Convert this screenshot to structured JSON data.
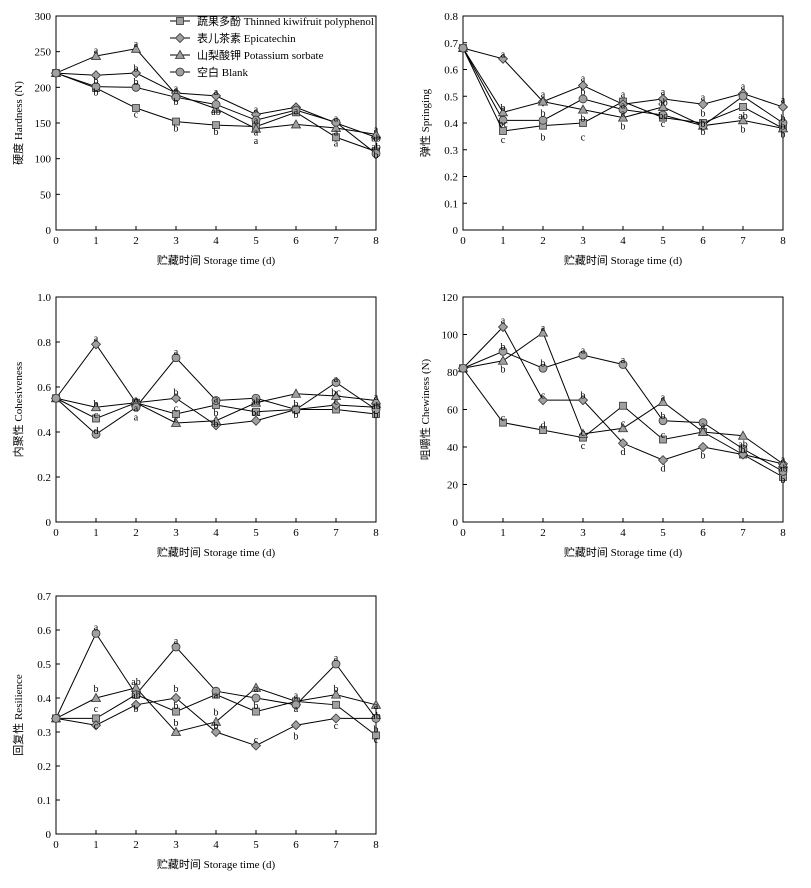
{
  "legend": [
    {
      "label": "蔬果多酚 Thinned kiwifruit polyphenol",
      "marker": "square"
    },
    {
      "label": "表儿茶素 Epicatechin",
      "marker": "diamond"
    },
    {
      "label": "山梨酸钾 Potassium sorbate",
      "marker": "triangle"
    },
    {
      "label": "空白 Blank",
      "marker": "circle"
    }
  ],
  "colors": {
    "marker_fill": "#a0a0a0",
    "marker_stroke": "#333333",
    "line": "#000000"
  },
  "chart_data": [
    {
      "type": "line",
      "ylabel": "硬度 Hardness (N)",
      "xlabel": "贮藏时间 Storage time (d)",
      "x": [
        0,
        1,
        2,
        3,
        4,
        5,
        6,
        7,
        8
      ],
      "xticks": [
        "0",
        "1",
        "2",
        "3",
        "4",
        "5",
        "6",
        "7",
        "8"
      ],
      "ylim": [
        0,
        300
      ],
      "yticks": [
        "0",
        "50",
        "100",
        "150",
        "200",
        "250",
        "300"
      ],
      "series": [
        {
          "name": "蔬果多酚 Thinned kiwifruit polyphenol",
          "values": [
            220,
            199,
            171,
            152,
            147,
            145,
            165,
            130,
            110
          ]
        },
        {
          "name": "表儿茶素 Epicatechin",
          "values": [
            220,
            217,
            220,
            192,
            188,
            162,
            172,
            150,
            130
          ]
        },
        {
          "name": "山梨酸钾 Potassium sorbate",
          "values": [
            220,
            244,
            254,
            190,
            170,
            142,
            148,
            143,
            134
          ]
        },
        {
          "name": "空白 Blank",
          "values": [
            220,
            201,
            200,
            186,
            176,
            154,
            168,
            151,
            107
          ]
        }
      ],
      "annotations": [
        {
          "x": 1,
          "y": 253,
          "text": "a"
        },
        {
          "x": 1,
          "y": 210,
          "text": "b"
        },
        {
          "x": 1,
          "y": 194,
          "text": "b"
        },
        {
          "x": 2,
          "y": 262,
          "text": "a"
        },
        {
          "x": 2,
          "y": 228,
          "text": "b"
        },
        {
          "x": 2,
          "y": 209,
          "text": "b"
        },
        {
          "x": 2,
          "y": 163,
          "text": "c"
        },
        {
          "x": 3,
          "y": 200,
          "text": "a"
        },
        {
          "x": 3,
          "y": 181,
          "text": "b"
        },
        {
          "x": 3,
          "y": 144,
          "text": "b"
        },
        {
          "x": 4,
          "y": 195,
          "text": "a"
        },
        {
          "x": 4,
          "y": 167,
          "text": "ab"
        },
        {
          "x": 4,
          "y": 139,
          "text": "b"
        },
        {
          "x": 5,
          "y": 170,
          "text": "a"
        },
        {
          "x": 5,
          "y": 155,
          "text": "a"
        },
        {
          "x": 5,
          "y": 138,
          "text": "a"
        },
        {
          "x": 5,
          "y": 126,
          "text": "a"
        },
        {
          "x": 6,
          "y": 168,
          "text": "a"
        },
        {
          "x": 7,
          "y": 158,
          "text": "a"
        },
        {
          "x": 7,
          "y": 138,
          "text": "a"
        },
        {
          "x": 7,
          "y": 123,
          "text": "a"
        },
        {
          "x": 8,
          "y": 142,
          "text": "a"
        },
        {
          "x": 8,
          "y": 130,
          "text": "ab"
        },
        {
          "x": 8,
          "y": 118,
          "text": "ab"
        },
        {
          "x": 8,
          "y": 106,
          "text": "b"
        }
      ]
    },
    {
      "type": "line",
      "ylabel": "弹性 Springing",
      "xlabel": "贮藏时间 Storage time (d)",
      "x": [
        0,
        1,
        2,
        3,
        4,
        5,
        6,
        7,
        8
      ],
      "xticks": [
        "0",
        "1",
        "2",
        "3",
        "4",
        "5",
        "6",
        "7",
        "8"
      ],
      "ylim": [
        0,
        0.8
      ],
      "yticks": [
        "0",
        "0.1",
        "0.2",
        "0.3",
        "0.4",
        "0.5",
        "0.6",
        "0.7",
        "0.8"
      ],
      "series": [
        {
          "name": "蔬果多酚 Thinned kiwifruit polyphenol",
          "values": [
            0.68,
            0.37,
            0.39,
            0.4,
            0.48,
            0.42,
            0.4,
            0.46,
            0.38
          ]
        },
        {
          "name": "表儿茶素 Epicatechin",
          "values": [
            0.68,
            0.64,
            0.48,
            0.54,
            0.47,
            0.49,
            0.47,
            0.51,
            0.46
          ]
        },
        {
          "name": "山梨酸钾 Potassium sorbate",
          "values": [
            0.68,
            0.44,
            0.48,
            0.45,
            0.42,
            0.46,
            0.39,
            0.41,
            0.38
          ]
        },
        {
          "name": "空白 Blank",
          "values": [
            0.68,
            0.41,
            0.41,
            0.49,
            0.45,
            0.43,
            0.39,
            0.5,
            0.4
          ]
        }
      ],
      "annotations": [
        {
          "x": 1,
          "y": 0.66,
          "text": "a"
        },
        {
          "x": 1,
          "y": 0.46,
          "text": "b"
        },
        {
          "x": 1,
          "y": 0.4,
          "text": "bc"
        },
        {
          "x": 1,
          "y": 0.34,
          "text": "c"
        },
        {
          "x": 2,
          "y": 0.51,
          "text": "a"
        },
        {
          "x": 2,
          "y": 0.44,
          "text": "b"
        },
        {
          "x": 2,
          "y": 0.35,
          "text": "b"
        },
        {
          "x": 3,
          "y": 0.57,
          "text": "a"
        },
        {
          "x": 3,
          "y": 0.52,
          "text": "b"
        },
        {
          "x": 3,
          "y": 0.42,
          "text": "b"
        },
        {
          "x": 3,
          "y": 0.35,
          "text": "c"
        },
        {
          "x": 4,
          "y": 0.51,
          "text": "a"
        },
        {
          "x": 4,
          "y": 0.47,
          "text": "a"
        },
        {
          "x": 4,
          "y": 0.44,
          "text": "a"
        },
        {
          "x": 4,
          "y": 0.39,
          "text": "b"
        },
        {
          "x": 5,
          "y": 0.52,
          "text": "a"
        },
        {
          "x": 5,
          "y": 0.48,
          "text": "ab"
        },
        {
          "x": 5,
          "y": 0.43,
          "text": "bc"
        },
        {
          "x": 5,
          "y": 0.4,
          "text": "c"
        },
        {
          "x": 6,
          "y": 0.5,
          "text": "a"
        },
        {
          "x": 6,
          "y": 0.44,
          "text": "b"
        },
        {
          "x": 6,
          "y": 0.4,
          "text": "b"
        },
        {
          "x": 6,
          "y": 0.37,
          "text": "b"
        },
        {
          "x": 7,
          "y": 0.54,
          "text": "a"
        },
        {
          "x": 7,
          "y": 0.43,
          "text": "ab"
        },
        {
          "x": 7,
          "y": 0.38,
          "text": "b"
        },
        {
          "x": 8,
          "y": 0.49,
          "text": "a"
        },
        {
          "x": 8,
          "y": 0.42,
          "text": "b"
        },
        {
          "x": 8,
          "y": 0.39,
          "text": "b"
        },
        {
          "x": 8,
          "y": 0.36,
          "text": "b"
        }
      ]
    },
    {
      "type": "line",
      "ylabel": "内聚性 Cohesiveness",
      "xlabel": "贮藏时间 Storage time (d)",
      "x": [
        0,
        1,
        2,
        3,
        4,
        5,
        6,
        7,
        8
      ],
      "xticks": [
        "0",
        "1",
        "2",
        "3",
        "4",
        "5",
        "6",
        "7",
        "8"
      ],
      "ylim": [
        0,
        1.0
      ],
      "yticks": [
        "0",
        "0.2",
        "0.4",
        "0.6",
        "0.8",
        "1.0"
      ],
      "series": [
        {
          "name": "蔬果多酚 Thinned kiwifruit polyphenol",
          "values": [
            0.55,
            0.46,
            0.53,
            0.48,
            0.52,
            0.49,
            0.5,
            0.5,
            0.48
          ]
        },
        {
          "name": "表儿茶素 Epicatechin",
          "values": [
            0.55,
            0.79,
            0.53,
            0.55,
            0.43,
            0.45,
            0.5,
            0.52,
            0.51
          ]
        },
        {
          "name": "山梨酸钾 Potassium sorbate",
          "values": [
            0.55,
            0.51,
            0.53,
            0.44,
            0.45,
            0.53,
            0.57,
            0.56,
            0.54
          ]
        },
        {
          "name": "空白 Blank",
          "values": [
            0.55,
            0.39,
            0.51,
            0.73,
            0.54,
            0.55,
            0.5,
            0.62,
            0.5
          ]
        }
      ],
      "annotations": [
        {
          "x": 1,
          "y": 0.82,
          "text": "a"
        },
        {
          "x": 1,
          "y": 0.53,
          "text": "b"
        },
        {
          "x": 1,
          "y": 0.48,
          "text": "c"
        },
        {
          "x": 1,
          "y": 0.41,
          "text": "d"
        },
        {
          "x": 2,
          "y": 0.55,
          "text": "a"
        },
        {
          "x": 2,
          "y": 0.51,
          "text": "a"
        },
        {
          "x": 2,
          "y": 0.47,
          "text": "a"
        },
        {
          "x": 3,
          "y": 0.76,
          "text": "a"
        },
        {
          "x": 3,
          "y": 0.58,
          "text": "b"
        },
        {
          "x": 3,
          "y": 0.51,
          "text": "c"
        },
        {
          "x": 3,
          "y": 0.46,
          "text": "c"
        },
        {
          "x": 4,
          "y": 0.55,
          "text": "a"
        },
        {
          "x": 4,
          "y": 0.49,
          "text": "b"
        },
        {
          "x": 4,
          "y": 0.44,
          "text": "b"
        },
        {
          "x": 5,
          "y": 0.54,
          "text": "ab"
        },
        {
          "x": 5,
          "y": 0.49,
          "text": "bc"
        },
        {
          "x": 6,
          "y": 0.53,
          "text": "b"
        },
        {
          "x": 6,
          "y": 0.48,
          "text": "b"
        },
        {
          "x": 7,
          "y": 0.64,
          "text": "a"
        },
        {
          "x": 7,
          "y": 0.58,
          "text": "bc"
        },
        {
          "x": 7,
          "y": 0.54,
          "text": "c"
        },
        {
          "x": 8,
          "y": 0.56,
          "text": "a"
        },
        {
          "x": 8,
          "y": 0.52,
          "text": "ab"
        },
        {
          "x": 8,
          "y": 0.48,
          "text": "b"
        }
      ]
    },
    {
      "type": "line",
      "ylabel": "咀嚼性 Chewiness (N)",
      "xlabel": "贮藏时间 Storage time (d)",
      "x": [
        0,
        1,
        2,
        3,
        4,
        5,
        6,
        7,
        8
      ],
      "xticks": [
        "0",
        "1",
        "2",
        "3",
        "4",
        "5",
        "6",
        "7",
        "8"
      ],
      "ylim": [
        0,
        120
      ],
      "yticks": [
        "0",
        "20",
        "40",
        "60",
        "80",
        "100",
        "120"
      ],
      "series": [
        {
          "name": "蔬果多酚 Thinned kiwifruit polyphenol",
          "values": [
            82,
            53,
            49,
            45,
            62,
            44,
            48,
            36,
            24
          ]
        },
        {
          "name": "表儿茶素 Epicatechin",
          "values": [
            82,
            104,
            65,
            65,
            42,
            33,
            40,
            36,
            31
          ]
        },
        {
          "name": "山梨酸钾 Potassium sorbate",
          "values": [
            82,
            86,
            101,
            47,
            50,
            64,
            48,
            46,
            31
          ]
        },
        {
          "name": "空白 Blank",
          "values": [
            82,
            91,
            82,
            89,
            84,
            54,
            53,
            39,
            27
          ]
        }
      ],
      "annotations": [
        {
          "x": 1,
          "y": 108,
          "text": "a"
        },
        {
          "x": 1,
          "y": 94,
          "text": "b"
        },
        {
          "x": 1,
          "y": 82,
          "text": "b"
        },
        {
          "x": 1,
          "y": 56,
          "text": "c"
        },
        {
          "x": 2,
          "y": 104,
          "text": "a"
        },
        {
          "x": 2,
          "y": 85,
          "text": "b"
        },
        {
          "x": 2,
          "y": 68,
          "text": "c"
        },
        {
          "x": 2,
          "y": 52,
          "text": "d"
        },
        {
          "x": 3,
          "y": 92,
          "text": "a"
        },
        {
          "x": 3,
          "y": 68,
          "text": "b"
        },
        {
          "x": 3,
          "y": 48,
          "text": "c"
        },
        {
          "x": 3,
          "y": 41,
          "text": "c"
        },
        {
          "x": 4,
          "y": 87,
          "text": "a"
        },
        {
          "x": 4,
          "y": 53,
          "text": "c"
        },
        {
          "x": 4,
          "y": 38,
          "text": "d"
        },
        {
          "x": 5,
          "y": 67,
          "text": "a"
        },
        {
          "x": 5,
          "y": 57,
          "text": "b"
        },
        {
          "x": 5,
          "y": 47,
          "text": "c"
        },
        {
          "x": 5,
          "y": 29,
          "text": "d"
        },
        {
          "x": 6,
          "y": 52,
          "text": "a"
        },
        {
          "x": 6,
          "y": 36,
          "text": "b"
        },
        {
          "x": 7,
          "y": 42,
          "text": "ab"
        },
        {
          "x": 7,
          "y": 39,
          "text": "b"
        },
        {
          "x": 8,
          "y": 34,
          "text": "a"
        },
        {
          "x": 8,
          "y": 29,
          "text": "ab"
        },
        {
          "x": 8,
          "y": 23,
          "text": "b"
        }
      ]
    },
    {
      "type": "line",
      "ylabel": "回复性 Resilience",
      "xlabel": "贮藏时间 Storage time (d)",
      "x": [
        0,
        1,
        2,
        3,
        4,
        5,
        6,
        7,
        8
      ],
      "xticks": [
        "0",
        "1",
        "2",
        "3",
        "4",
        "5",
        "6",
        "7",
        "8"
      ],
      "ylim": [
        0,
        0.7
      ],
      "yticks": [
        "0",
        "0.1",
        "0.2",
        "0.3",
        "0.4",
        "0.5",
        "0.6",
        "0.7"
      ],
      "series": [
        {
          "name": "蔬果多酚 Thinned kiwifruit polyphenol",
          "values": [
            0.34,
            0.34,
            0.41,
            0.36,
            0.41,
            0.36,
            0.39,
            0.38,
            0.29
          ]
        },
        {
          "name": "表儿茶素 Epicatechin",
          "values": [
            0.34,
            0.32,
            0.38,
            0.4,
            0.3,
            0.26,
            0.32,
            0.34,
            0.34
          ]
        },
        {
          "name": "山梨酸钾 Potassium sorbate",
          "values": [
            0.34,
            0.4,
            0.43,
            0.3,
            0.33,
            0.43,
            0.39,
            0.41,
            0.38
          ]
        },
        {
          "name": "空白 Blank",
          "values": [
            0.34,
            0.59,
            0.41,
            0.55,
            0.42,
            0.4,
            0.38,
            0.5,
            0.34
          ]
        }
      ],
      "annotations": [
        {
          "x": 1,
          "y": 0.61,
          "text": "a"
        },
        {
          "x": 1,
          "y": 0.43,
          "text": "b"
        },
        {
          "x": 1,
          "y": 0.37,
          "text": "c"
        },
        {
          "x": 1,
          "y": 0.32,
          "text": "c"
        },
        {
          "x": 2,
          "y": 0.45,
          "text": "ab"
        },
        {
          "x": 2,
          "y": 0.41,
          "text": "ab"
        },
        {
          "x": 2,
          "y": 0.37,
          "text": "b"
        },
        {
          "x": 3,
          "y": 0.57,
          "text": "a"
        },
        {
          "x": 3,
          "y": 0.43,
          "text": "b"
        },
        {
          "x": 3,
          "y": 0.38,
          "text": "b"
        },
        {
          "x": 3,
          "y": 0.33,
          "text": "b"
        },
        {
          "x": 4,
          "y": 0.41,
          "text": "a"
        },
        {
          "x": 4,
          "y": 0.36,
          "text": "b"
        },
        {
          "x": 4,
          "y": 0.32,
          "text": "b"
        },
        {
          "x": 5,
          "y": 0.43,
          "text": "a"
        },
        {
          "x": 5,
          "y": 0.38,
          "text": "b"
        },
        {
          "x": 5,
          "y": 0.28,
          "text": "c"
        },
        {
          "x": 6,
          "y": 0.41,
          "text": "a"
        },
        {
          "x": 6,
          "y": 0.37,
          "text": "a"
        },
        {
          "x": 6,
          "y": 0.29,
          "text": "b"
        },
        {
          "x": 7,
          "y": 0.52,
          "text": "a"
        },
        {
          "x": 7,
          "y": 0.43,
          "text": "b"
        },
        {
          "x": 7,
          "y": 0.32,
          "text": "c"
        },
        {
          "x": 8,
          "y": 0.38,
          "text": "a"
        },
        {
          "x": 8,
          "y": 0.35,
          "text": "ab"
        },
        {
          "x": 8,
          "y": 0.31,
          "text": "b"
        },
        {
          "x": 8,
          "y": 0.28,
          "text": "c"
        }
      ]
    }
  ]
}
